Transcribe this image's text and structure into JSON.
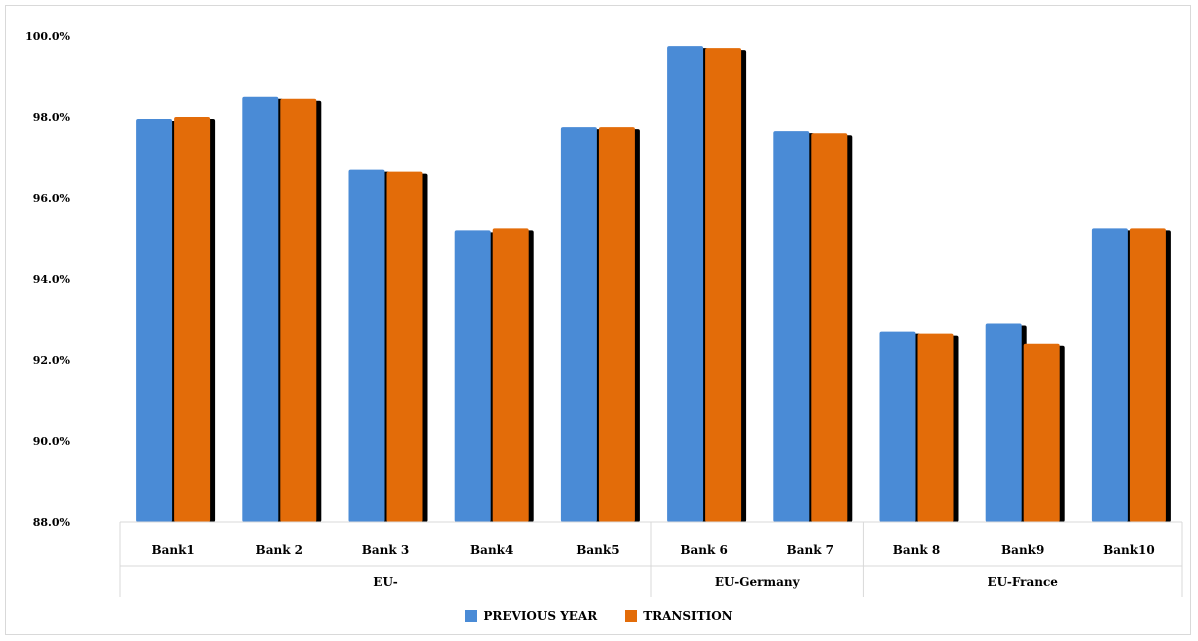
{
  "chart_data": {
    "type": "bar",
    "categories": [
      "Bank1",
      "Bank 2",
      "Bank 3",
      "Bank4",
      "Bank5",
      "Bank 6",
      "Bank 7",
      "Bank 8",
      "Bank9",
      "Bank10"
    ],
    "groups": [
      {
        "label": "EU-",
        "categories": [
          "Bank1",
          "Bank 2",
          "Bank 3",
          "Bank4",
          "Bank5"
        ]
      },
      {
        "label": "EU-Germany",
        "categories": [
          "Bank 6",
          "Bank 7"
        ]
      },
      {
        "label": "EU-France",
        "categories": [
          "Bank 8",
          "Bank9",
          "Bank10"
        ]
      }
    ],
    "series": [
      {
        "name": "PREVIOUS YEAR",
        "color": "#4a8bd6",
        "values": [
          97.95,
          98.5,
          96.7,
          95.2,
          97.75,
          99.75,
          97.65,
          92.7,
          92.9,
          95.25
        ]
      },
      {
        "name": "TRANSITION",
        "color": "#e36c09",
        "values": [
          98.0,
          98.45,
          96.65,
          95.25,
          97.75,
          99.7,
          97.6,
          92.65,
          92.4,
          95.25
        ]
      }
    ],
    "ylim": [
      88,
      100
    ],
    "yticks": [
      "88.0%",
      "90.0%",
      "92.0%",
      "94.0%",
      "96.0%",
      "98.0%",
      "100.0%"
    ],
    "ytick_values": [
      88,
      90,
      92,
      94,
      96,
      98,
      100
    ],
    "grid": false,
    "legend_position": "bottom",
    "title": "",
    "xlabel": "",
    "ylabel": ""
  }
}
